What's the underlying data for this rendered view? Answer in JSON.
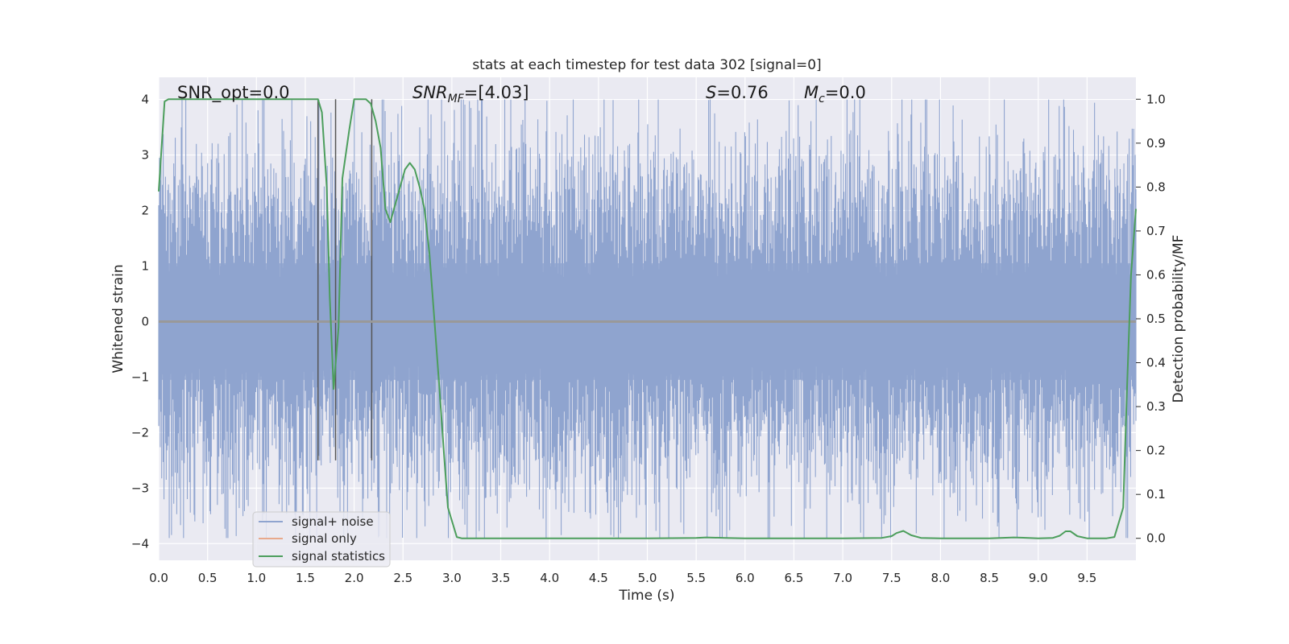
{
  "chart_data": {
    "type": "line",
    "title": "stats at each timestep for test data 302 [signal=0]",
    "xlabel": "Time (s)",
    "ylabel": "Whitened strain",
    "ylabel_right": "Detection probability/MF",
    "xlim": [
      0.0,
      10.0
    ],
    "ylim": [
      -4.3,
      4.4
    ],
    "ylim_right": [
      -0.05,
      1.05
    ],
    "x_ticks": [
      0.0,
      0.5,
      1.0,
      1.5,
      2.0,
      2.5,
      3.0,
      3.5,
      4.0,
      4.5,
      5.0,
      5.5,
      6.0,
      6.5,
      7.0,
      7.5,
      8.0,
      8.5,
      9.0,
      9.5
    ],
    "x_tick_labels": [
      "0.0",
      "0.5",
      "1.0",
      "1.5",
      "2.0",
      "2.5",
      "3.0",
      "3.5",
      "4.0",
      "4.5",
      "5.0",
      "5.5",
      "6.0",
      "6.5",
      "7.0",
      "7.5",
      "8.0",
      "8.5",
      "9.0",
      "9.5"
    ],
    "y_ticks": [
      -4,
      -3,
      -2,
      -1,
      0,
      1,
      2,
      3,
      4
    ],
    "y_tick_labels": [
      "−4",
      "−3",
      "−2",
      "−1",
      "0",
      "1",
      "2",
      "3",
      "4"
    ],
    "y_right_ticks": [
      0.0,
      0.1,
      0.2,
      0.3,
      0.4,
      0.5,
      0.6,
      0.7,
      0.8,
      0.9,
      1.0
    ],
    "y_right_tick_labels": [
      "0.0",
      "0.1",
      "0.2",
      "0.3",
      "0.4",
      "0.5",
      "0.6",
      "0.7",
      "0.8",
      "0.9",
      "1.0"
    ],
    "grid": true,
    "legend_position": "lower-left",
    "annotations": {
      "snr_opt": "SNR_opt=0.0",
      "snr_mf_base": "SNR",
      "snr_mf_sub": "MF",
      "snr_mf_value": "=[4.03]",
      "s_label": "S",
      "s_value": "=0.76",
      "mc_base": "M",
      "mc_sub": "c",
      "mc_value": "=0.0"
    },
    "vertical_lines": [
      1.63,
      1.81,
      2.18
    ],
    "series": [
      {
        "name": "signal+ noise",
        "color": "#8fa4cf",
        "axis": "left",
        "kind": "noise",
        "sigma": 0.95,
        "peak_max": 4.0,
        "peak_min": -3.9
      },
      {
        "name": "signal only",
        "color": "#e8a98c",
        "axis": "left",
        "kind": "line",
        "x": [
          0.0,
          10.0
        ],
        "values": [
          0.0,
          0.0
        ]
      },
      {
        "name": "signal statistics",
        "color": "#4c9e5c",
        "axis": "right",
        "kind": "line",
        "x": [
          0.0,
          0.06,
          0.1,
          0.2,
          0.5,
          1.0,
          1.5,
          1.6,
          1.63,
          1.67,
          1.72,
          1.75,
          1.79,
          1.84,
          1.88,
          1.95,
          2.0,
          2.05,
          2.12,
          2.17,
          2.22,
          2.27,
          2.32,
          2.37,
          2.42,
          2.47,
          2.52,
          2.57,
          2.62,
          2.67,
          2.72,
          2.77,
          2.82,
          2.87,
          2.92,
          2.96,
          3.0,
          3.05,
          3.1,
          3.5,
          4.0,
          4.5,
          5.0,
          5.5,
          5.6,
          5.8,
          6.0,
          6.5,
          7.0,
          7.4,
          7.5,
          7.55,
          7.62,
          7.7,
          7.8,
          8.0,
          8.5,
          8.75,
          8.9,
          9.0,
          9.15,
          9.22,
          9.28,
          9.33,
          9.4,
          9.5,
          9.6,
          9.7,
          9.78,
          9.83,
          9.87,
          9.91,
          9.95,
          10.0
        ],
        "values": [
          0.79,
          0.995,
          1.0,
          1.0,
          1.0,
          1.0,
          1.0,
          1.0,
          1.0,
          0.97,
          0.8,
          0.55,
          0.34,
          0.48,
          0.82,
          0.93,
          1.0,
          1.0,
          1.0,
          0.99,
          0.95,
          0.89,
          0.75,
          0.72,
          0.76,
          0.8,
          0.84,
          0.855,
          0.84,
          0.8,
          0.75,
          0.65,
          0.5,
          0.35,
          0.19,
          0.07,
          0.04,
          0.003,
          0.0,
          0.0,
          0.0,
          0.0,
          0.0,
          0.001,
          0.002,
          0.001,
          0.0,
          0.0,
          0.0,
          0.001,
          0.005,
          0.012,
          0.017,
          0.007,
          0.001,
          0.0,
          0.0,
          0.002,
          0.001,
          0.0,
          0.001,
          0.006,
          0.016,
          0.016,
          0.005,
          0.0,
          0.0,
          0.0,
          0.003,
          0.04,
          0.07,
          0.35,
          0.6,
          0.75
        ]
      }
    ]
  }
}
